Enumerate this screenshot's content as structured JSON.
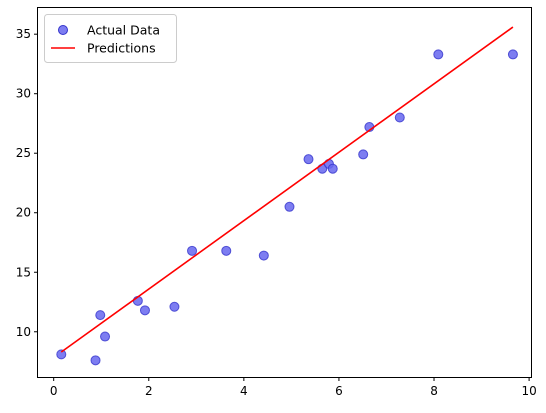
{
  "chart_data": {
    "type": "scatter",
    "title": "",
    "xlabel": "",
    "ylabel": "",
    "xlim": [
      -0.33,
      10.04
    ],
    "ylim": [
      6.2,
      37.2
    ],
    "x_ticks": [
      0,
      2,
      4,
      6,
      8,
      10
    ],
    "y_ticks": [
      10,
      15,
      20,
      25,
      30,
      35
    ],
    "x_tick_labels": [
      "0",
      "2",
      "4",
      "6",
      "8",
      "10"
    ],
    "y_tick_labels": [
      "10",
      "15",
      "20",
      "25",
      "30",
      "35"
    ],
    "grid": false,
    "legend_position": "upper-left",
    "series": [
      {
        "name": "Actual Data",
        "kind": "scatter",
        "color": "#6666ee",
        "points": [
          {
            "x": 0.16,
            "y": 8.1
          },
          {
            "x": 0.88,
            "y": 7.6
          },
          {
            "x": 0.98,
            "y": 11.4
          },
          {
            "x": 1.08,
            "y": 9.6
          },
          {
            "x": 1.77,
            "y": 12.6
          },
          {
            "x": 1.92,
            "y": 11.8
          },
          {
            "x": 2.54,
            "y": 12.1
          },
          {
            "x": 2.91,
            "y": 16.8
          },
          {
            "x": 3.63,
            "y": 16.8
          },
          {
            "x": 4.42,
            "y": 16.4
          },
          {
            "x": 4.96,
            "y": 20.5
          },
          {
            "x": 5.36,
            "y": 24.5
          },
          {
            "x": 5.65,
            "y": 23.7
          },
          {
            "x": 5.79,
            "y": 24.1
          },
          {
            "x": 5.87,
            "y": 23.7
          },
          {
            "x": 6.51,
            "y": 24.9
          },
          {
            "x": 6.64,
            "y": 27.2
          },
          {
            "x": 7.28,
            "y": 28.0
          },
          {
            "x": 8.09,
            "y": 33.3
          },
          {
            "x": 9.66,
            "y": 33.3
          }
        ]
      },
      {
        "name": "Predictions",
        "kind": "line",
        "color": "#ff0000",
        "points": [
          {
            "x": 0.16,
            "y": 8.3
          },
          {
            "x": 9.66,
            "y": 35.6
          }
        ]
      }
    ]
  }
}
